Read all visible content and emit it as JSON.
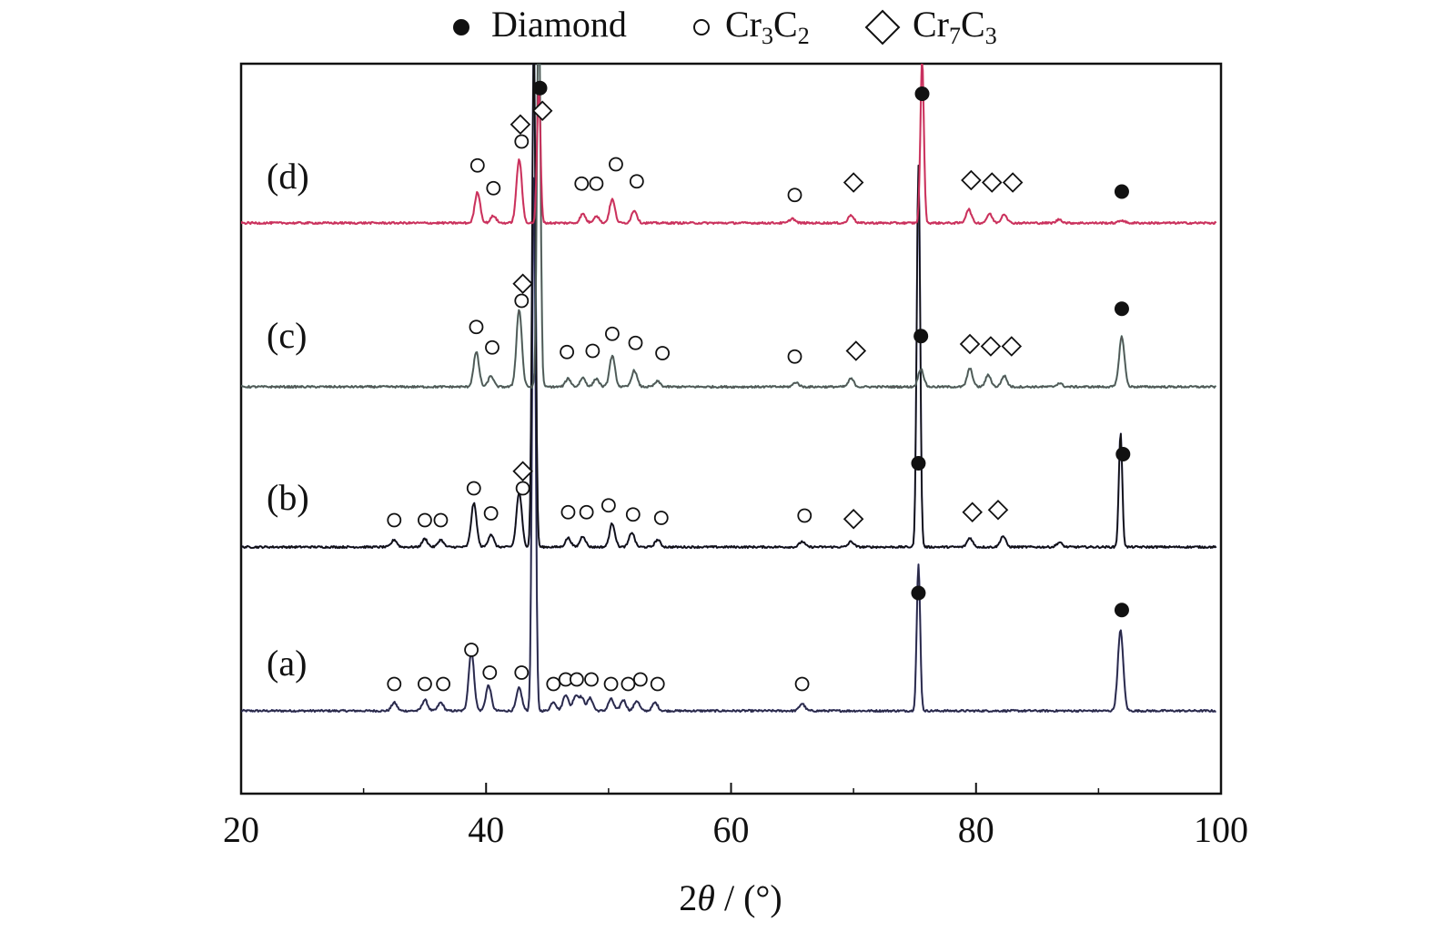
{
  "chart_data": {
    "type": "line",
    "xlabel": "2θ / (°)",
    "xlim": [
      20,
      100
    ],
    "xticks": [
      20,
      40,
      60,
      80,
      100
    ],
    "ylabel": "",
    "grid": false,
    "legend_placement": "top-center",
    "legend": [
      {
        "marker": "filled-circle",
        "label": "Diamond"
      },
      {
        "marker": "open-circle",
        "label": "Cr3C2"
      },
      {
        "marker": "open-diamond",
        "label": "Cr7C3"
      }
    ],
    "series": [
      {
        "name": "(a)",
        "color": "#2a2a45",
        "accent_color": "#2b2bb0",
        "peaks": [
          {
            "x": 32.5,
            "h": 9
          },
          {
            "x": 35.0,
            "h": 12
          },
          {
            "x": 36.3,
            "h": 9
          },
          {
            "x": 38.8,
            "h": 65
          },
          {
            "x": 40.2,
            "h": 28
          },
          {
            "x": 42.7,
            "h": 25
          },
          {
            "x": 43.9,
            "h": 600
          },
          {
            "x": 45.5,
            "h": 10
          },
          {
            "x": 46.5,
            "h": 18
          },
          {
            "x": 47.3,
            "h": 16
          },
          {
            "x": 47.8,
            "h": 14
          },
          {
            "x": 48.5,
            "h": 14
          },
          {
            "x": 50.2,
            "h": 13
          },
          {
            "x": 51.2,
            "h": 12
          },
          {
            "x": 52.3,
            "h": 11
          },
          {
            "x": 53.8,
            "h": 9
          },
          {
            "x": 65.8,
            "h": 8
          },
          {
            "x": 75.3,
            "h": 160
          },
          {
            "x": 91.8,
            "h": 88
          }
        ],
        "markers": [
          {
            "x": 32.5,
            "type": "open-circle",
            "level": 1
          },
          {
            "x": 35.0,
            "type": "open-circle",
            "level": 1
          },
          {
            "x": 36.5,
            "type": "open-circle",
            "level": 1
          },
          {
            "x": 38.8,
            "type": "open-circle",
            "level": 4
          },
          {
            "x": 40.3,
            "type": "open-circle",
            "level": 2
          },
          {
            "x": 42.9,
            "type": "open-circle",
            "level": 2
          },
          {
            "x": 45.5,
            "type": "open-circle",
            "level": 1
          },
          {
            "x": 46.5,
            "type": "open-circle",
            "level": 1.4
          },
          {
            "x": 47.4,
            "type": "open-circle",
            "level": 1.4
          },
          {
            "x": 48.6,
            "type": "open-circle",
            "level": 1.4
          },
          {
            "x": 50.2,
            "type": "open-circle",
            "level": 1
          },
          {
            "x": 51.6,
            "type": "open-circle",
            "level": 1
          },
          {
            "x": 52.6,
            "type": "open-circle",
            "level": 1.4
          },
          {
            "x": 54.0,
            "type": "open-circle",
            "level": 1
          },
          {
            "x": 65.8,
            "type": "open-circle",
            "level": 1
          },
          {
            "x": 75.3,
            "type": "filled-circle",
            "level": 9
          },
          {
            "x": 91.9,
            "type": "filled-circle",
            "level": 7.5
          }
        ]
      },
      {
        "name": "(b)",
        "color": "#111111",
        "accent_color": "#2b2bb0",
        "peaks": [
          {
            "x": 32.5,
            "h": 8
          },
          {
            "x": 35.0,
            "h": 9
          },
          {
            "x": 36.3,
            "h": 8
          },
          {
            "x": 39.0,
            "h": 48
          },
          {
            "x": 40.4,
            "h": 14
          },
          {
            "x": 42.7,
            "h": 60
          },
          {
            "x": 43.9,
            "h": 560
          },
          {
            "x": 46.7,
            "h": 10
          },
          {
            "x": 47.9,
            "h": 12
          },
          {
            "x": 50.3,
            "h": 26
          },
          {
            "x": 51.9,
            "h": 16
          },
          {
            "x": 54.0,
            "h": 8
          },
          {
            "x": 65.8,
            "h": 6
          },
          {
            "x": 69.8,
            "h": 6
          },
          {
            "x": 75.3,
            "h": 420
          },
          {
            "x": 79.5,
            "h": 10
          },
          {
            "x": 82.2,
            "h": 12
          },
          {
            "x": 86.8,
            "h": 5
          },
          {
            "x": 91.8,
            "h": 125
          }
        ],
        "markers": [
          {
            "x": 32.5,
            "type": "open-circle",
            "level": 1
          },
          {
            "x": 35.0,
            "type": "open-circle",
            "level": 1
          },
          {
            "x": 36.3,
            "type": "open-circle",
            "level": 1
          },
          {
            "x": 39.0,
            "type": "open-circle",
            "level": 3.8
          },
          {
            "x": 40.4,
            "type": "open-circle",
            "level": 1.6
          },
          {
            "x": 43.0,
            "type": "open-circle",
            "level": 3.8
          },
          {
            "x": 43.0,
            "type": "open-diamond",
            "level": 5.3
          },
          {
            "x": 46.7,
            "type": "open-circle",
            "level": 1.7
          },
          {
            "x": 48.2,
            "type": "open-circle",
            "level": 1.7
          },
          {
            "x": 50.0,
            "type": "open-circle",
            "level": 2.3
          },
          {
            "x": 52.0,
            "type": "open-circle",
            "level": 1.5
          },
          {
            "x": 54.3,
            "type": "open-circle",
            "level": 1.2
          },
          {
            "x": 66.0,
            "type": "open-circle",
            "level": 1.4
          },
          {
            "x": 70.0,
            "type": "open-diamond",
            "level": 1.1
          },
          {
            "x": 75.3,
            "type": "filled-circle",
            "level": 6
          },
          {
            "x": 79.7,
            "type": "open-diamond",
            "level": 1.7
          },
          {
            "x": 81.8,
            "type": "open-diamond",
            "level": 1.9
          },
          {
            "x": 92.0,
            "type": "filled-circle",
            "level": 6.8
          }
        ]
      },
      {
        "name": "(c)",
        "color": "#555555",
        "accent_color": "#20b08a",
        "peaks": [
          {
            "x": 39.2,
            "h": 38
          },
          {
            "x": 40.4,
            "h": 12
          },
          {
            "x": 42.7,
            "h": 85
          },
          {
            "x": 44.3,
            "h": 440
          },
          {
            "x": 46.7,
            "h": 9
          },
          {
            "x": 47.9,
            "h": 10
          },
          {
            "x": 49.0,
            "h": 9
          },
          {
            "x": 50.3,
            "h": 34
          },
          {
            "x": 52.1,
            "h": 18
          },
          {
            "x": 54.0,
            "h": 6
          },
          {
            "x": 65.3,
            "h": 5
          },
          {
            "x": 69.8,
            "h": 9
          },
          {
            "x": 75.5,
            "h": 20
          },
          {
            "x": 79.5,
            "h": 20
          },
          {
            "x": 81.0,
            "h": 13
          },
          {
            "x": 82.3,
            "h": 12
          },
          {
            "x": 86.8,
            "h": 4
          },
          {
            "x": 91.9,
            "h": 55
          }
        ],
        "markers": [
          {
            "x": 39.2,
            "type": "open-circle",
            "level": 3.9
          },
          {
            "x": 40.5,
            "type": "open-circle",
            "level": 2.1
          },
          {
            "x": 42.9,
            "type": "open-circle",
            "level": 6.2
          },
          {
            "x": 43.0,
            "type": "open-diamond",
            "level": 7.7
          },
          {
            "x": 46.6,
            "type": "open-circle",
            "level": 1.7
          },
          {
            "x": 48.7,
            "type": "open-circle",
            "level": 1.8
          },
          {
            "x": 50.3,
            "type": "open-circle",
            "level": 3.3
          },
          {
            "x": 52.2,
            "type": "open-circle",
            "level": 2.5
          },
          {
            "x": 54.4,
            "type": "open-circle",
            "level": 1.6
          },
          {
            "x": 65.2,
            "type": "open-circle",
            "level": 1.3
          },
          {
            "x": 70.2,
            "type": "open-diamond",
            "level": 1.8
          },
          {
            "x": 75.5,
            "type": "filled-circle",
            "level": 3.1
          },
          {
            "x": 79.5,
            "type": "open-diamond",
            "level": 2.4
          },
          {
            "x": 81.2,
            "type": "open-diamond",
            "level": 2.2
          },
          {
            "x": 82.9,
            "type": "open-diamond",
            "level": 2.2
          },
          {
            "x": 91.9,
            "type": "filled-circle",
            "level": 5.5
          }
        ]
      },
      {
        "name": "(d)",
        "color": "#c83060",
        "accent_color": "#e02020",
        "peaks": [
          {
            "x": 39.3,
            "h": 34
          },
          {
            "x": 40.6,
            "h": 8
          },
          {
            "x": 42.7,
            "h": 70
          },
          {
            "x": 44.3,
            "h": 150
          },
          {
            "x": 47.9,
            "h": 10
          },
          {
            "x": 49.0,
            "h": 8
          },
          {
            "x": 50.3,
            "h": 26
          },
          {
            "x": 52.1,
            "h": 14
          },
          {
            "x": 65.0,
            "h": 5
          },
          {
            "x": 69.8,
            "h": 9
          },
          {
            "x": 75.6,
            "h": 180
          },
          {
            "x": 79.4,
            "h": 15
          },
          {
            "x": 81.1,
            "h": 10
          },
          {
            "x": 82.3,
            "h": 10
          },
          {
            "x": 86.8,
            "h": 4
          },
          {
            "x": 91.9,
            "h": 3
          }
        ],
        "markers": [
          {
            "x": 39.3,
            "type": "open-circle",
            "level": 3.7
          },
          {
            "x": 40.6,
            "type": "open-circle",
            "level": 1.7
          },
          {
            "x": 42.9,
            "type": "open-circle",
            "level": 5.8
          },
          {
            "x": 42.8,
            "type": "open-diamond",
            "level": 7.3
          },
          {
            "x": 44.4,
            "type": "filled-circle",
            "level": 10.5
          },
          {
            "x": 44.6,
            "type": "open-diamond",
            "level": 8.5
          },
          {
            "x": 47.8,
            "type": "open-circle",
            "level": 2.1
          },
          {
            "x": 49.0,
            "type": "open-circle",
            "level": 2.1
          },
          {
            "x": 50.6,
            "type": "open-circle",
            "level": 3.8
          },
          {
            "x": 52.3,
            "type": "open-circle",
            "level": 2.3
          },
          {
            "x": 65.2,
            "type": "open-circle",
            "level": 1.1
          },
          {
            "x": 70.0,
            "type": "open-diamond",
            "level": 2.2
          },
          {
            "x": 75.6,
            "type": "filled-circle",
            "level": 10.0
          },
          {
            "x": 79.6,
            "type": "open-diamond",
            "level": 2.4
          },
          {
            "x": 81.3,
            "type": "open-diamond",
            "level": 2.2
          },
          {
            "x": 83.0,
            "type": "open-diamond",
            "level": 2.2
          },
          {
            "x": 91.9,
            "type": "filled-circle",
            "level": 1.4
          }
        ]
      }
    ]
  }
}
